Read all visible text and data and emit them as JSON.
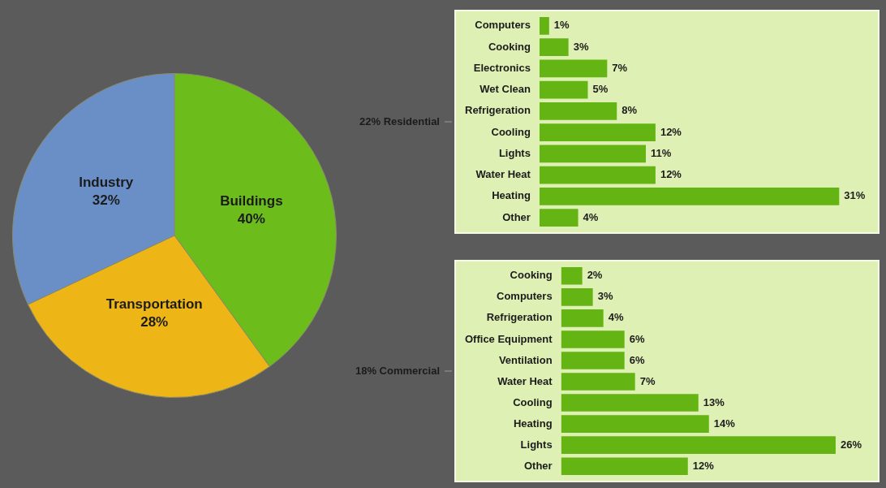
{
  "chart_data": [
    {
      "type": "pie",
      "categories": [
        "Buildings",
        "Transportation",
        "Industry"
      ],
      "values": [
        40,
        28,
        32
      ],
      "colors": [
        "#6cbd1c",
        "#eeb516",
        "#6a8fc6"
      ],
      "value_labels": [
        "40%",
        "28%",
        "32%"
      ],
      "legend": false
    },
    {
      "type": "bar",
      "orientation": "horizontal",
      "ylabel": "22% Residential",
      "categories": [
        "Computers",
        "Cooking",
        "Electronics",
        "Wet Clean",
        "Refrigeration",
        "Cooling",
        "Lights",
        "Water Heat",
        "Heating",
        "Other"
      ],
      "values": [
        1,
        3,
        7,
        5,
        8,
        12,
        11,
        12,
        31,
        4
      ],
      "value_labels": [
        "1%",
        "3%",
        "7%",
        "5%",
        "8%",
        "12%",
        "11%",
        "12%",
        "31%",
        "4%"
      ],
      "color": "#64b514",
      "tick_labels": "y",
      "grid": false,
      "legend": false
    },
    {
      "type": "bar",
      "orientation": "horizontal",
      "ylabel": "18% Commercial",
      "categories": [
        "Cooking",
        "Computers",
        "Refrigeration",
        "Office Equipment",
        "Ventilation",
        "Water Heat",
        "Cooling",
        "Heating",
        "Lights",
        "Other"
      ],
      "values": [
        2,
        3,
        4,
        6,
        6,
        7,
        13,
        14,
        26,
        12
      ],
      "value_labels": [
        "2%",
        "3%",
        "4%",
        "6%",
        "6%",
        "7%",
        "13%",
        "14%",
        "26%",
        "12%"
      ],
      "color": "#64b514",
      "tick_labels": "y",
      "grid": false,
      "legend": false
    }
  ]
}
